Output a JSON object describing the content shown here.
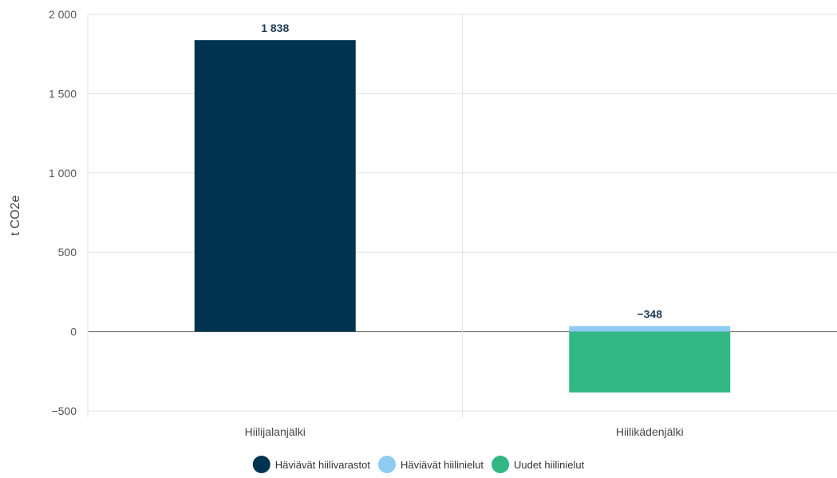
{
  "chart_data": {
    "type": "bar",
    "stacked": true,
    "categories": [
      "Hiilijalanjälki",
      "Hiilikädenjälki"
    ],
    "series": [
      {
        "name": "Häviävät hiilivarastot",
        "color": "#00334f",
        "values": [
          1838,
          0
        ]
      },
      {
        "name": "Häviävät hiilinielut",
        "color": "#8ecbf0",
        "values": [
          0,
          35
        ]
      },
      {
        "name": "Uudet hiilinielut",
        "color": "#30b784",
        "values": [
          0,
          -383
        ]
      }
    ],
    "totals": [
      1838,
      -348
    ],
    "total_labels": [
      "1 838",
      "−348"
    ],
    "ylabel": "t CO2e",
    "ylim": [
      -500,
      2000
    ],
    "yticks": [
      2000,
      1500,
      1000,
      500,
      0,
      -500
    ],
    "ytick_labels": [
      "2 000",
      "1 500",
      "1 000",
      "500",
      "0",
      "−500"
    ],
    "grid": true,
    "legend_position": "bottom"
  }
}
